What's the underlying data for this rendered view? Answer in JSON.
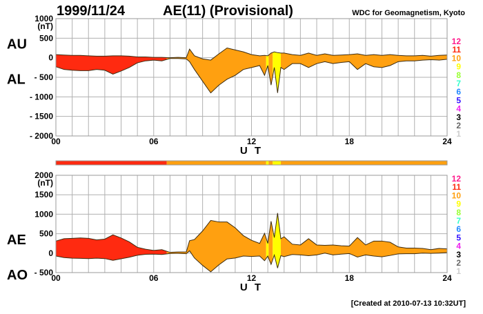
{
  "header": {
    "date": "1999/11/24",
    "title": "AE(11) (Provisional)",
    "source": "WDC for Geomagnetism, Kyoto"
  },
  "footer": "[Created at 2010-07-13 10:32UT]",
  "colors": {
    "grid": "#b0b0b0",
    "line": "#3a2a10"
  },
  "station_legend": [
    {
      "label": "12",
      "color": "#ff1a8c"
    },
    {
      "label": "11",
      "color": "#ff2a10"
    },
    {
      "label": "10",
      "color": "#ffa010"
    },
    {
      "label": "9",
      "color": "#ffff00"
    },
    {
      "label": "8",
      "color": "#99ff33"
    },
    {
      "label": "7",
      "color": "#33ffcc"
    },
    {
      "label": "6",
      "color": "#2288ff"
    },
    {
      "label": "5",
      "color": "#3311ff"
    },
    {
      "label": "4",
      "color": "#ee22ee"
    },
    {
      "label": "3",
      "color": "#000000"
    },
    {
      "label": "2",
      "color": "#666666"
    },
    {
      "label": "1",
      "color": "#cccccc"
    }
  ],
  "station_count_segments": [
    {
      "from": 0,
      "to": 6.8,
      "stations": 11
    },
    {
      "from": 6.8,
      "to": 12.9,
      "stations": 10
    },
    {
      "from": 12.9,
      "to": 13.05,
      "stations": 9
    },
    {
      "from": 13.05,
      "to": 13.3,
      "stations": 10
    },
    {
      "from": 13.3,
      "to": 13.8,
      "stations": 9
    },
    {
      "from": 13.8,
      "to": 24,
      "stations": 10
    }
  ],
  "chart_data": [
    {
      "type": "area",
      "name": "AU/AL",
      "ylabel_unit": "(nT)",
      "side_labels": [
        "AU",
        "AL"
      ],
      "xlabel": "U T",
      "xlim": [
        0,
        24
      ],
      "ylim": [
        -2000,
        1000
      ],
      "xticks": [
        "00",
        "06",
        "12",
        "18",
        "24"
      ],
      "yticks": [
        {
          "v": 1000,
          "t": "1000"
        },
        {
          "v": 500,
          "t": "500"
        },
        {
          "v": 0,
          "t": "0"
        },
        {
          "v": -500,
          "t": "- 500"
        },
        {
          "v": -1000,
          "t": "- 1000"
        },
        {
          "v": -1500,
          "t": "- 1500"
        },
        {
          "v": -2000,
          "t": "- 2000"
        }
      ],
      "grid": true,
      "x": [
        0,
        0.5,
        1,
        1.5,
        2,
        2.5,
        3,
        3.5,
        4,
        4.5,
        5,
        5.5,
        6,
        6.5,
        7,
        7.5,
        8,
        8.2,
        8.5,
        9,
        9.5,
        10,
        10.5,
        11,
        11.5,
        12,
        12.5,
        12.8,
        13,
        13.2,
        13.4,
        13.6,
        13.8,
        14,
        14.5,
        15,
        15.5,
        16,
        16.5,
        17,
        17.5,
        18,
        18.5,
        19,
        19.5,
        20,
        20.5,
        21,
        21.5,
        22,
        22.5,
        23,
        23.5,
        24
      ],
      "series": [
        {
          "name": "AU",
          "values": [
            80,
            70,
            60,
            60,
            50,
            40,
            40,
            50,
            50,
            40,
            20,
            20,
            10,
            10,
            0,
            10,
            0,
            220,
            50,
            -30,
            -60,
            100,
            250,
            200,
            150,
            80,
            50,
            60,
            50,
            120,
            150,
            130,
            120,
            120,
            80,
            60,
            120,
            60,
            100,
            60,
            70,
            80,
            100,
            60,
            80,
            60,
            80,
            60,
            50,
            50,
            60,
            40,
            60,
            70
          ]
        },
        {
          "name": "AL",
          "values": [
            -230,
            -300,
            -320,
            -330,
            -330,
            -300,
            -320,
            -420,
            -340,
            -250,
            -130,
            -80,
            -60,
            -80,
            -20,
            -20,
            -30,
            -100,
            -300,
            -600,
            -900,
            -700,
            -550,
            -450,
            -300,
            -250,
            -200,
            -450,
            -200,
            -700,
            -250,
            -900,
            -250,
            -300,
            -150,
            -150,
            -250,
            -150,
            -100,
            -150,
            -120,
            -100,
            -300,
            -150,
            -230,
            -250,
            -200,
            -100,
            -80,
            -80,
            -60,
            -50,
            -60,
            -40
          ]
        }
      ]
    },
    {
      "type": "area",
      "name": "AE/AO",
      "ylabel_unit": "(nT)",
      "side_labels": [
        "AE",
        "AO"
      ],
      "xlabel": "U T",
      "xlim": [
        0,
        24
      ],
      "ylim": [
        -500,
        2000
      ],
      "xticks": [
        "00",
        "06",
        "12",
        "18",
        "24"
      ],
      "yticks": [
        {
          "v": 2000,
          "t": "2000"
        },
        {
          "v": 1500,
          "t": "1500"
        },
        {
          "v": 1000,
          "t": "1000"
        },
        {
          "v": 500,
          "t": "500"
        },
        {
          "v": 0,
          "t": "0"
        },
        {
          "v": -500,
          "t": "- 500"
        }
      ],
      "grid": true,
      "derived": "AE = AU - AL, AO = (AU + AL) / 2"
    }
  ]
}
